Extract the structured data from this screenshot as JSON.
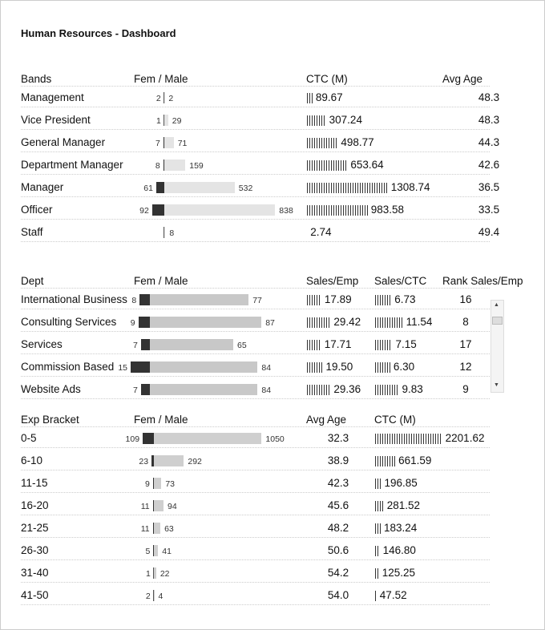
{
  "title": "Human Resources - Dashboard",
  "bands": {
    "headers": [
      "Bands",
      "Fem / Male",
      "CTC (M)",
      "Avg Age"
    ],
    "rows": [
      {
        "label": "Management",
        "fem": 2,
        "male": 2,
        "ctc": 89.67,
        "age": 48.3
      },
      {
        "label": "Vice President",
        "fem": 1,
        "male": 29,
        "ctc": 307.24,
        "age": 48.3
      },
      {
        "label": "General Manager",
        "fem": 7,
        "male": 71,
        "ctc": 498.77,
        "age": 44.3
      },
      {
        "label": "Department Manager",
        "fem": 8,
        "male": 159,
        "ctc": 653.64,
        "age": 42.6
      },
      {
        "label": "Manager",
        "fem": 61,
        "male": 532,
        "ctc": 1308.74,
        "age": 36.5
      },
      {
        "label": "Officer",
        "fem": 92,
        "male": 838,
        "ctc": 983.58,
        "age": 33.5
      },
      {
        "label": "Staff",
        "fem": null,
        "male": 8,
        "ctc": 2.74,
        "age": 49.4
      }
    ]
  },
  "dept": {
    "headers": [
      "Dept",
      "Fem / Male",
      "Sales/Emp",
      "Sales/CTC",
      "Rank Sales/Emp"
    ],
    "rows": [
      {
        "label": "International Business",
        "fem": 8,
        "male": 77,
        "sales_emp": 17.89,
        "sales_ctc": 6.73,
        "rank": 16
      },
      {
        "label": "Consulting Services",
        "fem": 9,
        "male": 87,
        "sales_emp": 29.42,
        "sales_ctc": 11.54,
        "rank": 8
      },
      {
        "label": "Services",
        "fem": 7,
        "male": 65,
        "sales_emp": 17.71,
        "sales_ctc": 7.15,
        "rank": 17
      },
      {
        "label": "Commission Based",
        "fem": 15,
        "male": 84,
        "sales_emp": {
          "value": 19.5,
          "label": "19.50"
        },
        "sales_ctc": {
          "value": 6.3,
          "label": "6.30"
        },
        "rank": 12
      },
      {
        "label": "Website Ads",
        "fem": 7,
        "male": 84,
        "sales_emp": 29.36,
        "sales_ctc": 9.83,
        "rank": 9
      }
    ]
  },
  "exp": {
    "headers": [
      "Exp Bracket",
      "Fem / Male",
      "Avg Age",
      "CTC (M)"
    ],
    "rows": [
      {
        "label": "0-5",
        "fem": 109,
        "male": 1050,
        "age": 32.3,
        "ctc": 2201.62
      },
      {
        "label": "6-10",
        "fem": 23,
        "male": 292,
        "age": 38.9,
        "ctc": 661.59
      },
      {
        "label": "11-15",
        "fem": 9,
        "male": 73,
        "age": 42.3,
        "ctc": 196.85
      },
      {
        "label": "16-20",
        "fem": 11,
        "male": 94,
        "age": 45.6,
        "ctc": 281.52
      },
      {
        "label": "21-25",
        "fem": 11,
        "male": 63,
        "age": 48.2,
        "ctc": 183.24
      },
      {
        "label": "26-30",
        "fem": 5,
        "male": 41,
        "age": 50.6,
        "ctc": {
          "value": 146.8,
          "label": "146.80"
        }
      },
      {
        "label": "31-40",
        "fem": 1,
        "male": 22,
        "age": 54.2,
        "ctc": 125.25
      },
      {
        "label": "41-50",
        "fem": 2,
        "male": 4,
        "age": {
          "value": 54,
          "label": "54.0"
        },
        "ctc": 47.52
      }
    ]
  }
}
